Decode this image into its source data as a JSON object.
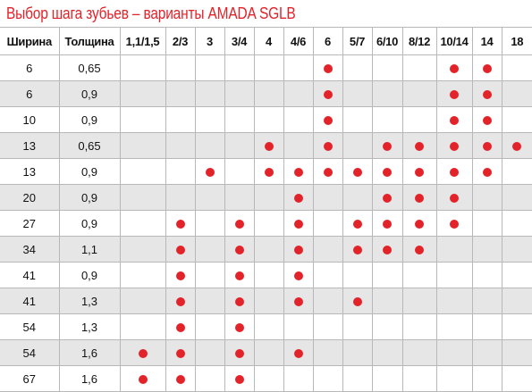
{
  "title": "Выбор шага зубьев – варианты AMADA SGLB",
  "headers": [
    "Ширина",
    "Толщина",
    "1,1/1,5",
    "2/3",
    "3",
    "3/4",
    "4",
    "4/6",
    "6",
    "5/7",
    "6/10",
    "8/12",
    "10/14",
    "14",
    "18"
  ],
  "rows": [
    {
      "width": "6",
      "thickness": "0,65",
      "marks": [
        0,
        0,
        0,
        0,
        0,
        0,
        1,
        0,
        0,
        0,
        1,
        1,
        0
      ]
    },
    {
      "width": "6",
      "thickness": "0,9",
      "marks": [
        0,
        0,
        0,
        0,
        0,
        0,
        1,
        0,
        0,
        0,
        1,
        1,
        0
      ]
    },
    {
      "width": "10",
      "thickness": "0,9",
      "marks": [
        0,
        0,
        0,
        0,
        0,
        0,
        1,
        0,
        0,
        0,
        1,
        1,
        0
      ]
    },
    {
      "width": "13",
      "thickness": "0,65",
      "marks": [
        0,
        0,
        0,
        0,
        1,
        0,
        1,
        0,
        1,
        1,
        1,
        1,
        1
      ]
    },
    {
      "width": "13",
      "thickness": "0,9",
      "marks": [
        0,
        0,
        1,
        0,
        1,
        1,
        1,
        1,
        1,
        1,
        1,
        1,
        0
      ]
    },
    {
      "width": "20",
      "thickness": "0,9",
      "marks": [
        0,
        0,
        0,
        0,
        0,
        1,
        0,
        0,
        1,
        1,
        1,
        0,
        0
      ]
    },
    {
      "width": "27",
      "thickness": "0,9",
      "marks": [
        0,
        1,
        0,
        1,
        0,
        1,
        0,
        1,
        1,
        1,
        1,
        0,
        0
      ]
    },
    {
      "width": "34",
      "thickness": "1,1",
      "marks": [
        0,
        1,
        0,
        1,
        0,
        1,
        0,
        1,
        1,
        1,
        0,
        0,
        0
      ]
    },
    {
      "width": "41",
      "thickness": "0,9",
      "marks": [
        0,
        1,
        0,
        1,
        0,
        1,
        0,
        0,
        0,
        0,
        0,
        0,
        0
      ]
    },
    {
      "width": "41",
      "thickness": "1,3",
      "marks": [
        0,
        1,
        0,
        1,
        0,
        1,
        0,
        1,
        0,
        0,
        0,
        0,
        0
      ]
    },
    {
      "width": "54",
      "thickness": "1,3",
      "marks": [
        0,
        1,
        0,
        1,
        0,
        0,
        0,
        0,
        0,
        0,
        0,
        0,
        0
      ]
    },
    {
      "width": "54",
      "thickness": "1,6",
      "marks": [
        1,
        1,
        0,
        1,
        0,
        1,
        0,
        0,
        0,
        0,
        0,
        0,
        0
      ]
    },
    {
      "width": "67",
      "thickness": "1,6",
      "marks": [
        1,
        1,
        0,
        1,
        0,
        0,
        0,
        0,
        0,
        0,
        0,
        0,
        0
      ]
    }
  ],
  "colors": {
    "accent": "#e3232a",
    "shaded_row": "#e6e6e6",
    "grid_line": "#b8b8b8"
  }
}
